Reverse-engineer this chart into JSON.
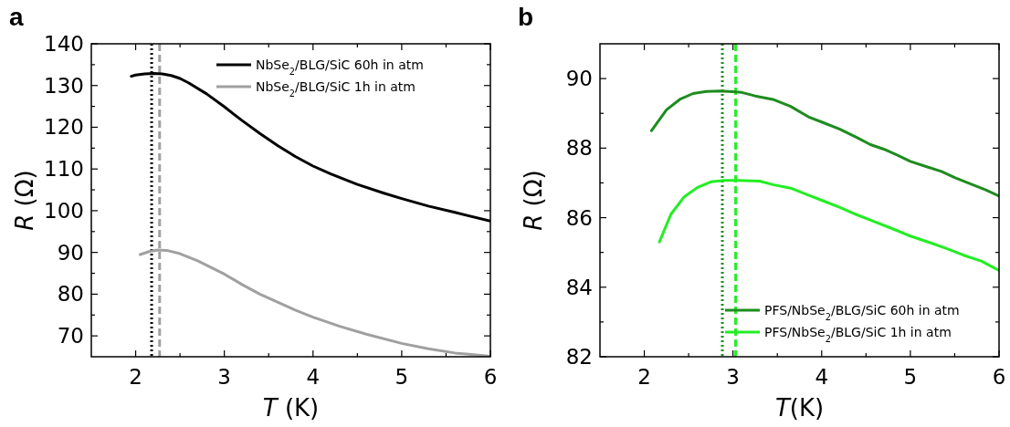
{
  "chart_data": [
    {
      "type": "line",
      "title": "a",
      "xlabel": "T (K)",
      "ylabel": "R (Ω)",
      "xlim": [
        1.5,
        6
      ],
      "ylim": [
        65,
        140
      ],
      "xticks": [
        2,
        {
          "value": 2.5,
          "label": null
        },
        3,
        {
          "value": 3.5,
          "label": null
        },
        4,
        {
          "value": 4.5,
          "label": null
        },
        5,
        {
          "value": 5.5,
          "label": null
        },
        6
      ],
      "yticks": [
        70,
        {
          "value": 75,
          "label": null
        },
        80,
        {
          "value": 85,
          "label": null
        },
        90,
        {
          "value": 95,
          "label": null
        },
        100,
        {
          "value": 105,
          "label": null
        },
        110,
        {
          "value": 115,
          "label": null
        },
        120,
        {
          "value": 125,
          "label": null
        },
        130,
        {
          "value": 135,
          "label": null
        },
        140
      ],
      "legend": "top right",
      "grid": false,
      "line_style": "solid",
      "marker": "none",
      "ref_lines": [
        {
          "axis": "x",
          "value": 2.18,
          "color": "#000000",
          "line_style": "dotted"
        },
        {
          "axis": "x",
          "value": 2.27,
          "color": "#a0a0a0",
          "line_style": "dashed"
        }
      ],
      "series": [
        {
          "name": "NbSe$_{2}$/BLG/SiC 60h in atm",
          "color": "#000000",
          "x": [
            1.95,
            2.0,
            2.1,
            2.2,
            2.3,
            2.4,
            2.5,
            2.6,
            2.8,
            3.0,
            3.2,
            3.4,
            3.6,
            3.8,
            4.0,
            4.2,
            4.5,
            4.8,
            5.0,
            5.3,
            5.6,
            6.0
          ],
          "values": [
            132.2,
            132.5,
            132.8,
            132.9,
            132.8,
            132.4,
            131.7,
            130.6,
            128.0,
            124.9,
            121.6,
            118.5,
            115.6,
            113.0,
            110.7,
            108.8,
            106.3,
            104.2,
            102.9,
            101.1,
            99.6,
            97.5
          ]
        },
        {
          "name": "NbSe$_{2}$/BLG/SiC 1h in atm",
          "color": "#a0a0a0",
          "x": [
            2.05,
            2.15,
            2.25,
            2.35,
            2.5,
            2.7,
            3.0,
            3.2,
            3.4,
            3.6,
            3.8,
            4.0,
            4.3,
            4.6,
            5.0,
            5.3,
            5.6,
            6.0
          ],
          "values": [
            89.5,
            90.2,
            90.6,
            90.5,
            89.7,
            88.0,
            84.8,
            82.3,
            80.0,
            78.1,
            76.2,
            74.5,
            72.3,
            70.4,
            68.2,
            66.9,
            65.9,
            65.1
          ]
        }
      ]
    },
    {
      "type": "line",
      "title": "b",
      "xlabel": "T(K)",
      "ylabel": "R (Ω)",
      "xlim": [
        1.5,
        6
      ],
      "ylim": [
        82,
        91
      ],
      "xticks": [
        2,
        {
          "value": 2.5,
          "label": null
        },
        3,
        {
          "value": 3.5,
          "label": null
        },
        4,
        {
          "value": 4.5,
          "label": null
        },
        5,
        {
          "value": 5.5,
          "label": null
        },
        6
      ],
      "yticks": [
        82,
        {
          "value": 83,
          "label": null
        },
        84,
        {
          "value": 85,
          "label": null
        },
        86,
        {
          "value": 87,
          "label": null
        },
        88,
        {
          "value": 89,
          "label": null
        },
        90
      ],
      "legend": "bottom right",
      "grid": false,
      "line_style": "solid",
      "marker": "none",
      "ref_lines": [
        {
          "axis": "x",
          "value": 2.88,
          "color": "#1e8c1e",
          "line_style": "dotted"
        },
        {
          "axis": "x",
          "value": 3.03,
          "color": "#22ee22",
          "line_style": "dashed"
        }
      ],
      "series": [
        {
          "name": "PFS/NbSe$_{2}$/BLG/SiC 60h in atm",
          "color": "#1e8c1e",
          "x": [
            2.08,
            2.25,
            2.4,
            2.55,
            2.7,
            2.85,
            3.0,
            3.1,
            3.25,
            3.45,
            3.65,
            3.85,
            4.0,
            4.2,
            4.4,
            4.55,
            4.7,
            4.85,
            5.0,
            5.2,
            5.35,
            5.5,
            5.7,
            5.85,
            6.0
          ],
          "values": [
            88.5,
            89.1,
            89.4,
            89.57,
            89.63,
            89.64,
            89.62,
            89.6,
            89.5,
            89.4,
            89.2,
            88.9,
            88.75,
            88.55,
            88.3,
            88.1,
            87.97,
            87.8,
            87.62,
            87.45,
            87.33,
            87.15,
            86.95,
            86.8,
            86.62
          ]
        },
        {
          "name": "PFS/NbSe$_{2}$/BLG/SiC 1h in atm",
          "color": "#22ee22",
          "x": [
            2.17,
            2.3,
            2.45,
            2.6,
            2.75,
            2.9,
            3.05,
            3.3,
            3.45,
            3.65,
            3.85,
            4.0,
            4.2,
            4.4,
            4.6,
            4.8,
            5.0,
            5.2,
            5.4,
            5.6,
            5.8,
            6.0
          ],
          "values": [
            85.3,
            86.1,
            86.6,
            86.87,
            87.03,
            87.07,
            87.07,
            87.05,
            86.95,
            86.85,
            86.65,
            86.5,
            86.3,
            86.08,
            85.88,
            85.68,
            85.47,
            85.3,
            85.12,
            84.92,
            84.75,
            84.48
          ]
        }
      ]
    }
  ]
}
